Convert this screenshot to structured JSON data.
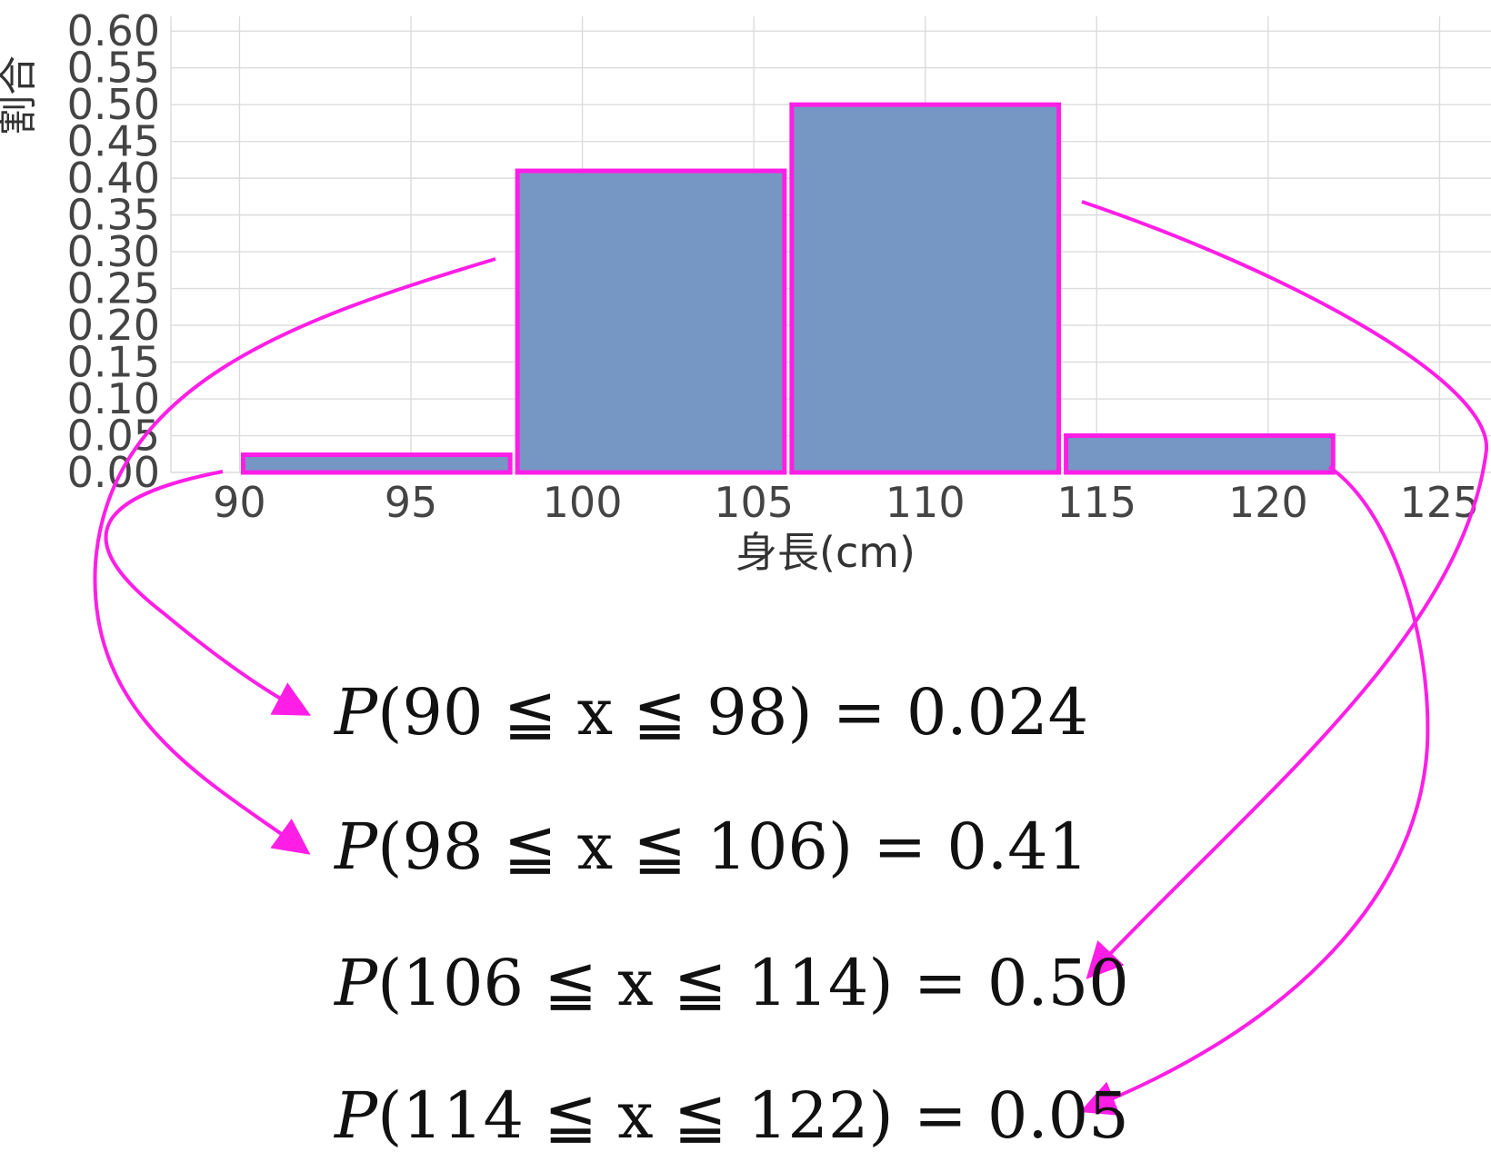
{
  "chart_data": {
    "type": "bar",
    "xlabel": "身長(cm)",
    "ylabel": "割合",
    "xlim": [
      88,
      126.5
    ],
    "ylim": [
      0.0,
      0.62
    ],
    "x_ticks": [
      "90",
      "95",
      "100",
      "105",
      "110",
      "115",
      "120",
      "125"
    ],
    "y_ticks": [
      "0.00",
      "0.05",
      "0.10",
      "0.15",
      "0.20",
      "0.25",
      "0.30",
      "0.35",
      "0.40",
      "0.45",
      "0.50",
      "0.55",
      "0.60"
    ],
    "grid": true,
    "bins": [
      {
        "start": 90,
        "end": 98,
        "value": 0.024
      },
      {
        "start": 98,
        "end": 106,
        "value": 0.41
      },
      {
        "start": 106,
        "end": 114,
        "value": 0.5
      },
      {
        "start": 114,
        "end": 122,
        "value": 0.05
      }
    ],
    "bar_color": "#7696c4",
    "highlight_color": "#ff1ee6"
  },
  "annotations": [
    {
      "var": "P",
      "text": "(90 ≦ x ≦ 98) = 0.024"
    },
    {
      "var": "P",
      "text": "(98 ≦ x ≦ 106) = 0.41"
    },
    {
      "var": "P",
      "text": "(106 ≦ x ≦ 114) = 0.50"
    },
    {
      "var": "P",
      "text": "(114 ≦ x ≦ 122) = 0.05"
    }
  ]
}
